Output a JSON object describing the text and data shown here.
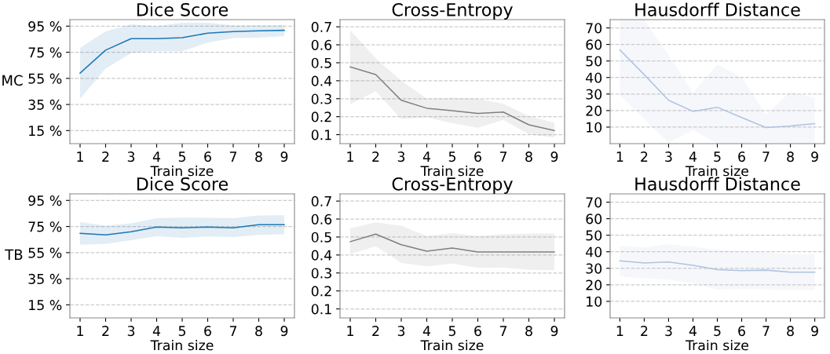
{
  "chart_data": [
    {
      "type": "line",
      "title": "Dice Score",
      "xlabel": "Train size",
      "ylabel": "MC",
      "x": [
        1,
        2,
        3,
        4,
        5,
        6,
        7,
        8,
        9
      ],
      "xlim": [
        0.6,
        9.4
      ],
      "xticks": [
        1,
        2,
        3,
        4,
        5,
        6,
        7,
        8,
        9
      ],
      "ylim": [
        5,
        100
      ],
      "yticks": [
        {
          "value": 15,
          "label": "15 %"
        },
        {
          "value": 35,
          "label": "35 %"
        },
        {
          "value": 55,
          "label": "55 %"
        },
        {
          "value": 75,
          "label": "75 %"
        },
        {
          "value": 95,
          "label": "95 %"
        }
      ],
      "grid": "y",
      "series": [
        {
          "color": "#1f77b4",
          "values": [
            59,
            76.6,
            85.4,
            85.4,
            86.2,
            89.6,
            90.8,
            91.4,
            91.8
          ],
          "upper": [
            78.4,
            91,
            96.4,
            95,
            97.6,
            97.6,
            95.6,
            95.8,
            95.8
          ],
          "lower": [
            39.4,
            62.6,
            74.4,
            75.8,
            75.8,
            82.4,
            85.8,
            86.2,
            87.4
          ]
        }
      ]
    },
    {
      "type": "line",
      "title": "Cross-Entropy",
      "xlabel": "Train size",
      "x": [
        1,
        2,
        3,
        4,
        5,
        6,
        7,
        8,
        9
      ],
      "xlim": [
        0.6,
        9.4
      ],
      "xticks": [
        1,
        2,
        3,
        4,
        5,
        6,
        7,
        8,
        9
      ],
      "ylim": [
        0.05,
        0.74
      ],
      "yticks": [
        0.1,
        0.2,
        0.3,
        0.4,
        0.5,
        0.6,
        0.7
      ],
      "grid": "y",
      "series": [
        {
          "color": "#808080",
          "values": [
            0.477,
            0.434,
            0.291,
            0.247,
            0.233,
            0.218,
            0.226,
            0.155,
            0.123
          ],
          "upper": [
            0.681,
            0.525,
            0.4,
            0.3,
            0.306,
            0.3,
            0.272,
            0.204,
            0.167
          ],
          "lower": [
            0.269,
            0.342,
            0.186,
            0.196,
            0.164,
            0.138,
            0.182,
            0.101,
            0.084
          ]
        }
      ]
    },
    {
      "type": "line",
      "title": "Hausdorff Distance",
      "xlabel": "Train size",
      "x": [
        1,
        2,
        3,
        4,
        5,
        6,
        7,
        8,
        9
      ],
      "xlim": [
        0.6,
        9.4
      ],
      "xticks": [
        1,
        2,
        3,
        4,
        5,
        6,
        7,
        8,
        9
      ],
      "ylim": [
        0,
        75
      ],
      "yticks": [
        10,
        20,
        30,
        40,
        50,
        60,
        70
      ],
      "grid": "y",
      "series": [
        {
          "color": "#b0c4de",
          "values": [
            56.7,
            41.7,
            26.2,
            19.5,
            22,
            15.8,
            9.7,
            10.7,
            12.1
          ],
          "upper": [
            75,
            75,
            53.5,
            30.8,
            48,
            40.2,
            17.4,
            31.5,
            27.6
          ],
          "lower": [
            29.2,
            15,
            0.5,
            8.3,
            0,
            0,
            1,
            0,
            0
          ]
        }
      ]
    },
    {
      "type": "line",
      "title": "Dice Score",
      "xlabel": "Train size",
      "ylabel": "TB",
      "x": [
        1,
        2,
        3,
        4,
        5,
        6,
        7,
        8,
        9
      ],
      "xlim": [
        0.6,
        9.4
      ],
      "xticks": [
        1,
        2,
        3,
        4,
        5,
        6,
        7,
        8,
        9
      ],
      "ylim": [
        5,
        100
      ],
      "yticks": [
        {
          "value": 15,
          "label": "15 %"
        },
        {
          "value": 35,
          "label": "35 %"
        },
        {
          "value": 55,
          "label": "55 %"
        },
        {
          "value": 75,
          "label": "75 %"
        },
        {
          "value": 95,
          "label": "95 %"
        }
      ],
      "grid": "y",
      "series": [
        {
          "color": "#1f77b4",
          "values": [
            69.8,
            68.6,
            71,
            74.6,
            74,
            74.6,
            74,
            76.4,
            76.4
          ],
          "upper": [
            78.4,
            75.6,
            77.4,
            81.4,
            81.8,
            81.6,
            81.4,
            83.4,
            83.6
          ],
          "lower": [
            61,
            61.6,
            64.6,
            67.6,
            66.4,
            67.4,
            67,
            68.6,
            69
          ]
        }
      ]
    },
    {
      "type": "line",
      "title": "Cross-Entropy",
      "xlabel": "Train size",
      "x": [
        1,
        2,
        3,
        4,
        5,
        6,
        7,
        8,
        9
      ],
      "xlim": [
        0.6,
        9.4
      ],
      "xticks": [
        1,
        2,
        3,
        4,
        5,
        6,
        7,
        8,
        9
      ],
      "ylim": [
        0.05,
        0.74
      ],
      "yticks": [
        0.1,
        0.2,
        0.3,
        0.4,
        0.5,
        0.6,
        0.7
      ],
      "grid": "y",
      "series": [
        {
          "color": "#808080",
          "values": [
            0.474,
            0.516,
            0.457,
            0.421,
            0.439,
            0.417,
            0.417,
            0.417,
            0.417
          ],
          "upper": [
            0.548,
            0.582,
            0.563,
            0.505,
            0.522,
            0.505,
            0.516,
            0.52,
            0.52
          ],
          "lower": [
            0.405,
            0.449,
            0.356,
            0.337,
            0.352,
            0.328,
            0.33,
            0.317,
            0.315
          ]
        }
      ]
    },
    {
      "type": "line",
      "title": "Hausdorff Distance",
      "xlabel": "Train size",
      "x": [
        1,
        2,
        3,
        4,
        5,
        6,
        7,
        8,
        9
      ],
      "xlim": [
        0.6,
        9.4
      ],
      "xticks": [
        1,
        2,
        3,
        4,
        5,
        6,
        7,
        8,
        9
      ],
      "ylim": [
        0,
        75
      ],
      "yticks": [
        10,
        20,
        30,
        40,
        50,
        60,
        70
      ],
      "grid": "y",
      "series": [
        {
          "color": "#b0c4de",
          "values": [
            34.5,
            33.2,
            33.8,
            31.8,
            29.2,
            28.6,
            28.9,
            27.7,
            27.7
          ],
          "upper": [
            43.6,
            42.5,
            44.6,
            43.1,
            41.2,
            40.1,
            39.8,
            38.6,
            38.6
          ],
          "lower": [
            25.1,
            23.9,
            23.1,
            21,
            17.1,
            17.6,
            17.3,
            16.8,
            16.8
          ]
        }
      ]
    }
  ]
}
